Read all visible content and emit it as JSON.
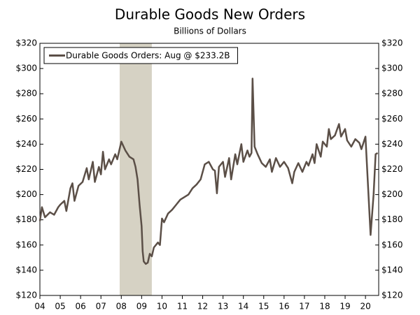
{
  "chart_data": {
    "type": "line",
    "title": "Durable Goods New Orders",
    "subtitle": "Billions of Dollars",
    "x": [
      2004.0,
      2004.1,
      2004.25,
      2004.5,
      2004.7,
      2004.9,
      2005.0,
      2005.2,
      2005.3,
      2005.5,
      2005.6,
      2005.7,
      2005.9,
      2006.1,
      2006.3,
      2006.4,
      2006.6,
      2006.7,
      2006.9,
      2007.0,
      2007.1,
      2007.2,
      2007.4,
      2007.5,
      2007.7,
      2007.8,
      2008.0,
      2008.2,
      2008.4,
      2008.6,
      2008.7,
      2008.8,
      2008.9,
      2009.0,
      2009.05,
      2009.1,
      2009.2,
      2009.3,
      2009.4,
      2009.5,
      2009.6,
      2009.8,
      2009.9,
      2010.0,
      2010.1,
      2010.3,
      2010.5,
      2010.7,
      2010.9,
      2011.1,
      2011.3,
      2011.5,
      2011.7,
      2011.9,
      2012.1,
      2012.3,
      2012.5,
      2012.6,
      2012.7,
      2012.8,
      2013.0,
      2013.1,
      2013.3,
      2013.4,
      2013.6,
      2013.7,
      2013.9,
      2014.0,
      2014.2,
      2014.3,
      2014.4,
      2014.45,
      2014.55,
      2014.7,
      2014.9,
      2015.1,
      2015.3,
      2015.4,
      2015.6,
      2015.8,
      2016.0,
      2016.2,
      2016.4,
      2016.5,
      2016.7,
      2016.9,
      2017.1,
      2017.2,
      2017.4,
      2017.5,
      2017.6,
      2017.8,
      2017.9,
      2018.1,
      2018.2,
      2018.3,
      2018.5,
      2018.7,
      2018.8,
      2019.0,
      2019.1,
      2019.3,
      2019.5,
      2019.7,
      2019.8,
      2020.0,
      2020.1,
      2020.25,
      2020.4,
      2020.5,
      2020.6
    ],
    "series": [
      {
        "name": "Durable Goods Orders: Aug @ $233.2B",
        "color": "#5b4f47",
        "values": [
          179,
          190,
          182,
          186,
          184,
          190,
          192,
          195,
          187,
          205,
          209,
          195,
          207,
          210,
          221,
          212,
          226,
          210,
          222,
          216,
          234,
          220,
          228,
          224,
          232,
          228,
          242,
          235,
          230,
          228,
          222,
          212,
          192,
          175,
          155,
          147,
          145,
          146,
          153,
          151,
          158,
          162,
          160,
          181,
          178,
          185,
          188,
          192,
          196,
          198,
          200,
          205,
          208,
          212,
          224,
          226,
          220,
          219,
          201,
          222,
          226,
          214,
          229,
          212,
          232,
          224,
          240,
          226,
          235,
          230,
          233,
          292,
          238,
          232,
          225,
          222,
          228,
          218,
          229,
          222,
          226,
          221,
          209,
          218,
          225,
          218,
          226,
          223,
          232,
          225,
          240,
          230,
          242,
          238,
          252,
          244,
          247,
          256,
          246,
          252,
          243,
          238,
          244,
          241,
          236,
          246,
          215,
          168,
          200,
          232,
          233
        ]
      }
    ],
    "recession": {
      "start": 2007.92,
      "end": 2009.5,
      "color": "#d6d2c4"
    },
    "xlim": [
      2004,
      2020.65
    ],
    "xticks": [
      {
        "value": 2004,
        "label": "04"
      },
      {
        "value": 2005,
        "label": "05"
      },
      {
        "value": 2006,
        "label": "06"
      },
      {
        "value": 2007,
        "label": "07"
      },
      {
        "value": 2008,
        "label": "08"
      },
      {
        "value": 2009,
        "label": "09"
      },
      {
        "value": 2010,
        "label": "10"
      },
      {
        "value": 2011,
        "label": "11"
      },
      {
        "value": 2012,
        "label": "12"
      },
      {
        "value": 2013,
        "label": "13"
      },
      {
        "value": 2014,
        "label": "14"
      },
      {
        "value": 2015,
        "label": "15"
      },
      {
        "value": 2016,
        "label": "16"
      },
      {
        "value": 2017,
        "label": "17"
      },
      {
        "value": 2018,
        "label": "18"
      },
      {
        "value": 2019,
        "label": "19"
      },
      {
        "value": 2020,
        "label": "20"
      }
    ],
    "ylim": [
      120,
      320
    ],
    "yticks": [
      {
        "value": 120,
        "label": "$120"
      },
      {
        "value": 140,
        "label": "$140"
      },
      {
        "value": 160,
        "label": "$160"
      },
      {
        "value": 180,
        "label": "$180"
      },
      {
        "value": 200,
        "label": "$200"
      },
      {
        "value": 220,
        "label": "$220"
      },
      {
        "value": 240,
        "label": "$240"
      },
      {
        "value": 260,
        "label": "$260"
      },
      {
        "value": 280,
        "label": "$280"
      },
      {
        "value": 300,
        "label": "$300"
      },
      {
        "value": 320,
        "label": "$320"
      }
    ],
    "y2lim": [
      120,
      320
    ],
    "y2ticks": [
      {
        "value": 120,
        "label": "$120"
      },
      {
        "value": 140,
        "label": "$140"
      },
      {
        "value": 160,
        "label": "$160"
      },
      {
        "value": 180,
        "label": "$180"
      },
      {
        "value": 200,
        "label": "$200"
      },
      {
        "value": 220,
        "label": "$220"
      },
      {
        "value": 240,
        "label": "$240"
      },
      {
        "value": 260,
        "label": "$260"
      },
      {
        "value": 280,
        "label": "$280"
      },
      {
        "value": 300,
        "label": "$300"
      },
      {
        "value": 320,
        "label": "$320"
      }
    ],
    "grid": false,
    "legend": "top-left"
  }
}
